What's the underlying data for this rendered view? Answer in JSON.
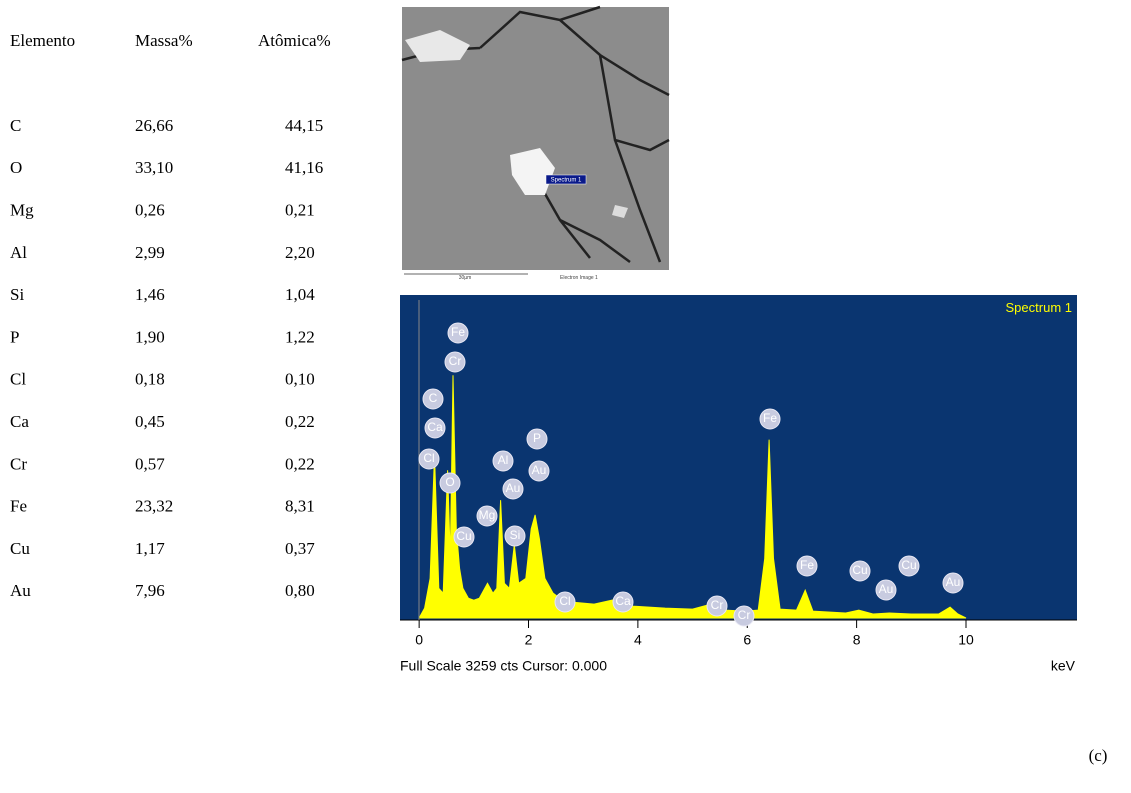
{
  "table": {
    "header": [
      "Elemento",
      "Massa%",
      "Atômica%"
    ],
    "rows": [
      [
        "C",
        "26,66",
        "44,15"
      ],
      [
        "O",
        "33,10",
        "41,16"
      ],
      [
        "Mg",
        "0,26",
        "0,21"
      ],
      [
        "Al",
        "2,99",
        "2,20"
      ],
      [
        "Si",
        "1,46",
        "1,04"
      ],
      [
        "P",
        "1,90",
        "1,22"
      ],
      [
        "Cl",
        "0,18",
        "0,10"
      ],
      [
        "Ca",
        "0,45",
        "0,22"
      ],
      [
        "Cr",
        "0,57",
        "0,22"
      ],
      [
        "Fe",
        "23,32",
        "8,31"
      ],
      [
        "Cu",
        "1,17",
        "0,37"
      ],
      [
        "Au",
        "7,96",
        "0,80"
      ]
    ]
  },
  "image": {
    "marker": "Spectrum 1",
    "scale": "30µm",
    "caption": "Electron Image 1"
  },
  "spectrum": {
    "title": "Spectrum 1",
    "footer": "Full Scale 3259 cts Cursor: 0.000",
    "x_unit": "keV",
    "xlim": [
      -0.35,
      12.03
    ],
    "ylim": [
      0,
      3259
    ],
    "xticks": [
      0,
      2,
      4,
      6,
      8,
      10
    ],
    "color": "#ffff00",
    "background": "#0a3570",
    "x": [
      0.0,
      0.1,
      0.2,
      0.28,
      0.36,
      0.44,
      0.52,
      0.57,
      0.62,
      0.68,
      0.74,
      0.8,
      0.9,
      1.0,
      1.1,
      1.25,
      1.35,
      1.42,
      1.49,
      1.56,
      1.65,
      1.74,
      1.82,
      1.95,
      2.05,
      2.12,
      2.2,
      2.3,
      2.45,
      2.62,
      2.8,
      3.2,
      3.69,
      3.9,
      4.5,
      5.0,
      5.41,
      5.6,
      5.95,
      6.2,
      6.32,
      6.4,
      6.48,
      6.6,
      6.9,
      7.06,
      7.2,
      7.8,
      8.04,
      8.3,
      8.6,
      9.0,
      9.5,
      9.71,
      9.85,
      10.0
    ],
    "counts": [
      0,
      100,
      400,
      1650,
      300,
      250,
      1490,
      600,
      2450,
      900,
      500,
      300,
      200,
      180,
      200,
      350,
      250,
      300,
      1190,
      350,
      300,
      740,
      350,
      400,
      900,
      1040,
      800,
      400,
      250,
      180,
      160,
      140,
      200,
      120,
      100,
      90,
      150,
      80,
      70,
      80,
      600,
      1800,
      600,
      90,
      80,
      280,
      70,
      50,
      80,
      40,
      50,
      40,
      40,
      110,
      40,
      0
    ],
    "peak_labels": [
      "Fe",
      "Cr",
      "C",
      "Ca",
      "Cl",
      "O",
      "Al",
      "P",
      "Au",
      "Au",
      "Mg",
      "Si",
      "Cu",
      "Cl",
      "Ca",
      "Cr",
      "Cr",
      "Fe",
      "Fe",
      "Cu",
      "Au",
      "Cu",
      "Au"
    ]
  },
  "panel_label": "(c)"
}
